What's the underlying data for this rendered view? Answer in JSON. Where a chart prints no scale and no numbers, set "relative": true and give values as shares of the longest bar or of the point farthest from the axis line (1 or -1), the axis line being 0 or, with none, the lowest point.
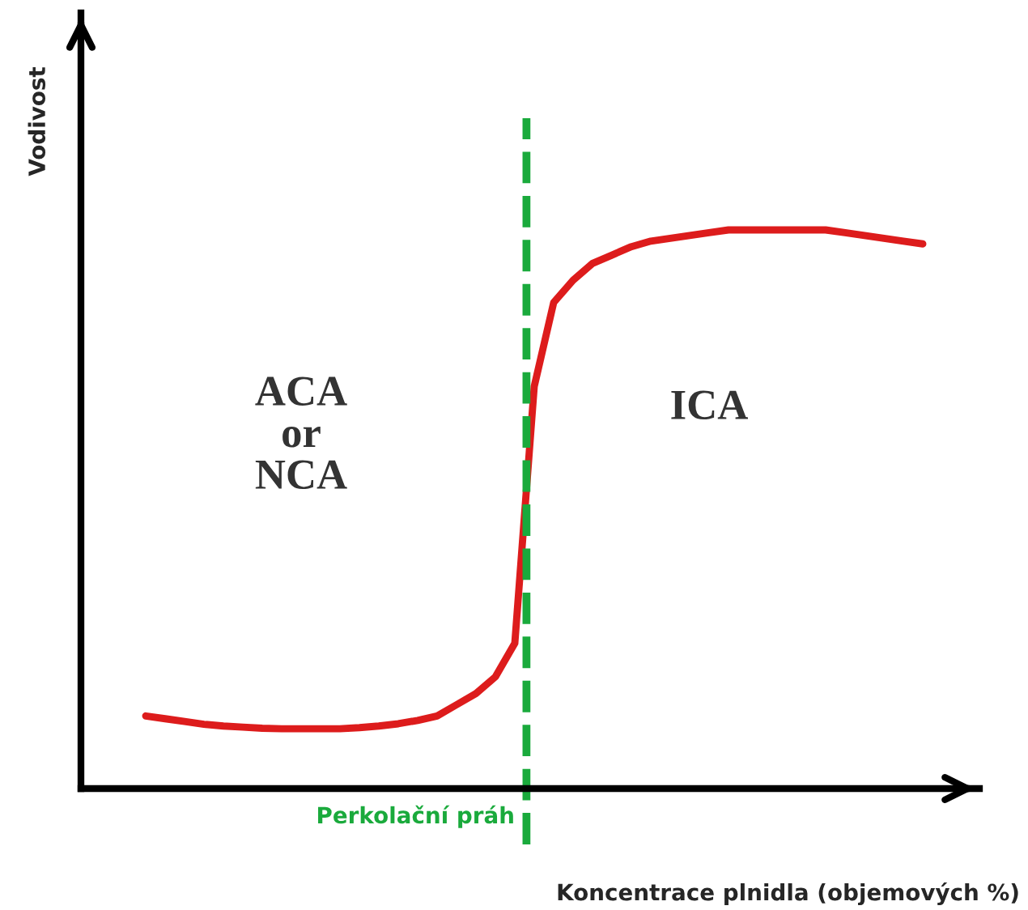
{
  "chart_data": {
    "type": "line",
    "relative": true,
    "xlabel": "Koncentrace plnidla (objemových %)",
    "ylabel": "Vodivost",
    "categories": [
      null,
      null,
      null,
      null,
      null,
      null,
      null,
      null,
      null,
      null,
      null,
      null,
      null,
      null,
      null,
      null,
      null,
      null,
      null,
      null,
      null,
      null,
      null,
      null,
      null,
      null,
      null,
      null,
      null,
      null,
      null,
      null,
      null,
      null,
      null,
      null,
      null,
      null,
      null,
      null,
      null
    ],
    "series": [
      {
        "color": "#dd1c1c",
        "values": [
          0.13,
          0.125,
          0.12,
          0.115,
          0.112,
          0.11,
          0.108,
          0.107,
          0.107,
          0.107,
          0.107,
          0.109,
          0.112,
          0.116,
          0.122,
          0.13,
          0.15,
          0.17,
          0.2,
          0.26,
          0.72,
          0.87,
          0.91,
          0.94,
          0.955,
          0.97,
          0.98,
          0.985,
          0.99,
          0.995,
          1.0,
          1.0,
          1.0,
          1.0,
          1.0,
          1.0,
          0.995,
          0.99,
          0.985,
          0.98,
          0.975
        ]
      }
    ],
    "ref_lines": [
      {
        "axis": "x",
        "label": "Perkolační práh",
        "color": "#1aaa3c",
        "line_style": "dashed"
      }
    ],
    "annotations": [
      "ACA\nor\nNCA",
      "ICA"
    ],
    "legend": false,
    "marker": "none",
    "line_style": "solid"
  }
}
